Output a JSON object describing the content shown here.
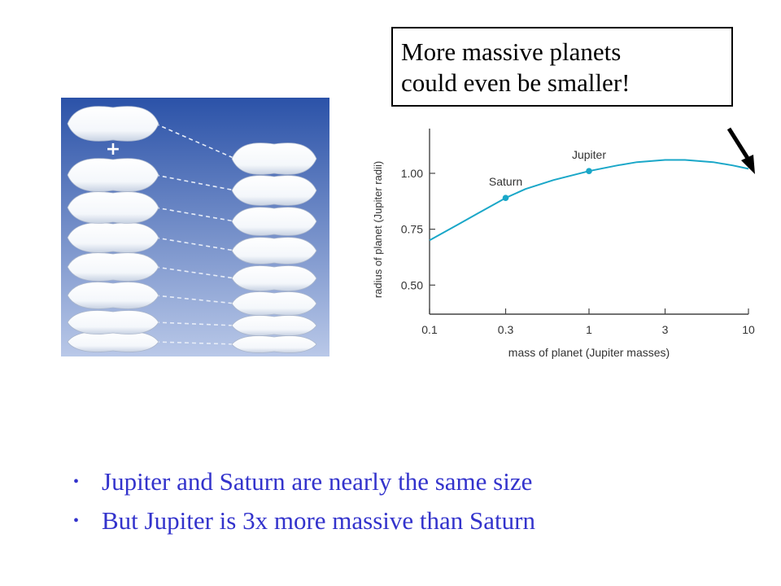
{
  "callout": {
    "line1": "More massive planets",
    "line2": "could even be smaller!"
  },
  "illustration": {
    "plus_sign": "+",
    "background_top": "#2b52a8",
    "background_bottom": "#b9c8e8",
    "pillow_color": "#f4f7fb",
    "stack_left_count": 8,
    "stack_right_count": 8
  },
  "chart_data": {
    "type": "line",
    "title": "",
    "xlabel": "mass of planet (Jupiter masses)",
    "ylabel": "radius of planet (Jupiter radii)",
    "x_scale": "log",
    "xlim": [
      0.1,
      10
    ],
    "x_ticks": [
      0.1,
      0.3,
      1,
      3,
      10
    ],
    "x_tick_labels": [
      "0.1",
      "0.3",
      "1",
      "3",
      "10"
    ],
    "ylim": [
      0.37,
      1.2
    ],
    "y_ticks": [
      0.5,
      0.75,
      1.0
    ],
    "y_tick_labels": [
      "0.50",
      "0.75",
      "1.00"
    ],
    "line_color": "#1aa7c8",
    "series": [
      {
        "x": [
          0.1,
          0.15,
          0.2,
          0.3,
          0.4,
          0.6,
          1,
          1.5,
          2,
          3,
          4,
          6,
          8,
          10
        ],
        "y": [
          0.7,
          0.77,
          0.82,
          0.89,
          0.93,
          0.97,
          1.01,
          1.035,
          1.05,
          1.06,
          1.06,
          1.05,
          1.035,
          1.02
        ]
      }
    ],
    "points": [
      {
        "label": "Saturn",
        "x": 0.3,
        "y": 0.89
      },
      {
        "label": "Jupiter",
        "x": 1,
        "y": 1.01
      }
    ]
  },
  "bullets": [
    "Jupiter and Saturn are nearly the same size",
    "But Jupiter is 3x more massive than Saturn"
  ],
  "bullet_glyph": "•"
}
